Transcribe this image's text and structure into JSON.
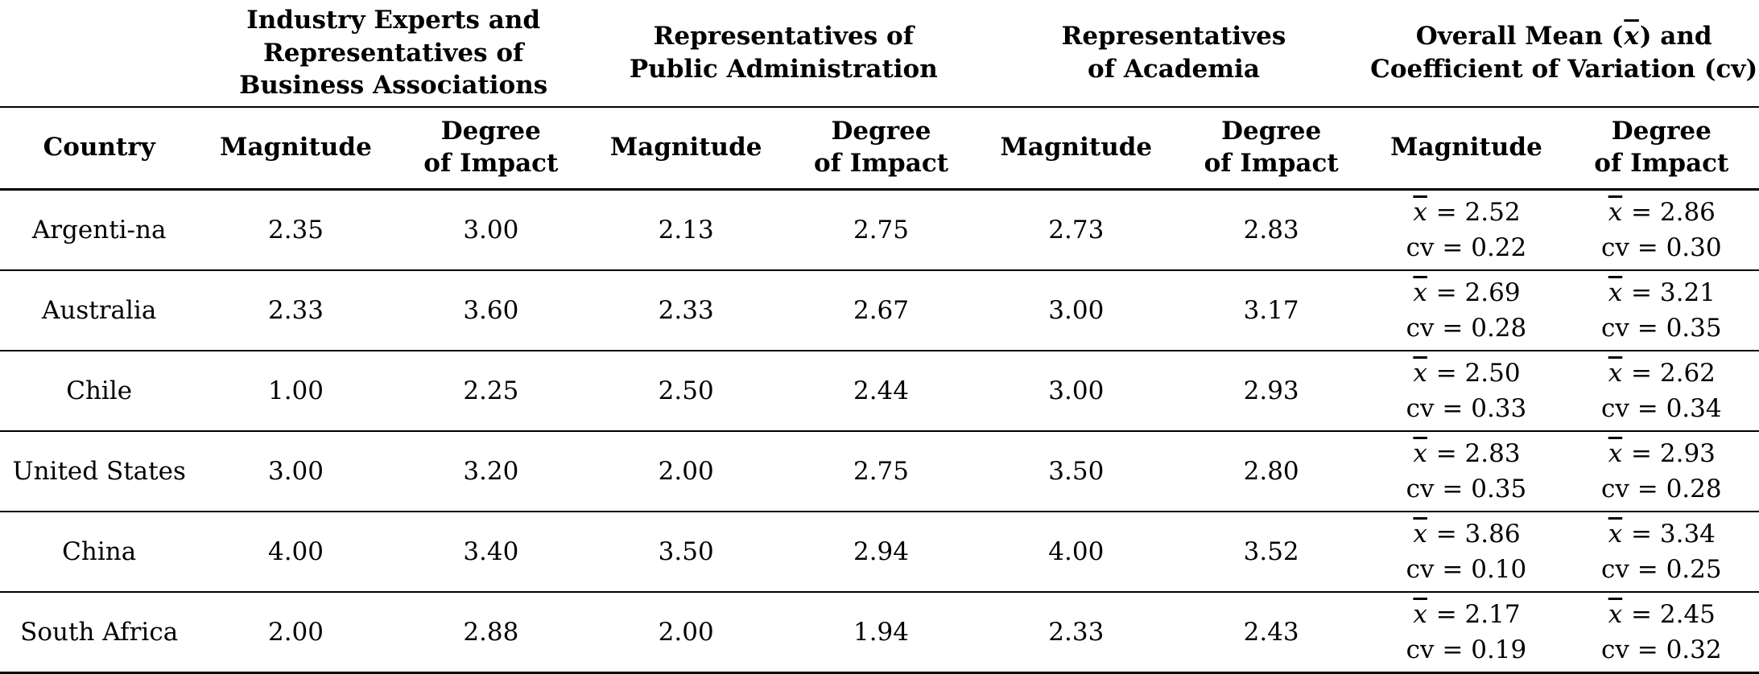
{
  "table": {
    "group_headers": [
      {
        "lines": [
          "Industry Experts and",
          "Representatives of",
          "Business Associations"
        ]
      },
      {
        "lines": [
          "Representatives of",
          "Public Administration"
        ]
      },
      {
        "lines": [
          "Representatives",
          "of Academia"
        ]
      },
      {
        "lines": [
          "Overall Mean (x̄) and",
          "Coefficient of Variation (cv)"
        ]
      }
    ],
    "column_headers": {
      "country": "Country",
      "magnitude": "Magnitude",
      "degree_line1": "Degree",
      "degree_line2": "of Impact"
    },
    "rows": [
      {
        "country": "Argenti-na",
        "values": [
          "2.35",
          "3.00",
          "2.13",
          "2.75",
          "2.73",
          "2.83"
        ],
        "overall_magnitude": {
          "mean": "x̄ = 2.52",
          "cv": "cv = 0.22"
        },
        "overall_degree": {
          "mean": "x̄ = 2.86",
          "cv": "cv = 0.30"
        }
      },
      {
        "country": "Australia",
        "values": [
          "2.33",
          "3.60",
          "2.33",
          "2.67",
          "3.00",
          "3.17"
        ],
        "overall_magnitude": {
          "mean": "x̄ = 2.69",
          "cv": "cv = 0.28"
        },
        "overall_degree": {
          "mean": "x̄ = 3.21",
          "cv": "cv = 0.35"
        }
      },
      {
        "country": "Chile",
        "values": [
          "1.00",
          "2.25",
          "2.50",
          "2.44",
          "3.00",
          "2.93"
        ],
        "overall_magnitude": {
          "mean": "x̄ = 2.50",
          "cv": "cv = 0.33"
        },
        "overall_degree": {
          "mean": "x̄ = 2.62",
          "cv": "cv = 0.34"
        }
      },
      {
        "country": "United States",
        "values": [
          "3.00",
          "3.20",
          "2.00",
          "2.75",
          "3.50",
          "2.80"
        ],
        "overall_magnitude": {
          "mean": "x̄ = 2.83",
          "cv": "cv = 0.35"
        },
        "overall_degree": {
          "mean": "x̄ = 2.93",
          "cv": "cv = 0.28"
        }
      },
      {
        "country": "China",
        "values": [
          "4.00",
          "3.40",
          "3.50",
          "2.94",
          "4.00",
          "3.52"
        ],
        "overall_magnitude": {
          "mean": "x̄ = 3.86",
          "cv": "cv = 0.10"
        },
        "overall_degree": {
          "mean": "x̄ = 3.34",
          "cv": "cv = 0.25"
        }
      },
      {
        "country": "South Africa",
        "values": [
          "2.00",
          "2.88",
          "2.00",
          "1.94",
          "2.33",
          "2.43"
        ],
        "overall_magnitude": {
          "mean": "x̄ = 2.17",
          "cv": "cv = 0.19"
        },
        "overall_degree": {
          "mean": "x̄ = 2.45",
          "cv": "cv = 0.32"
        }
      }
    ]
  }
}
